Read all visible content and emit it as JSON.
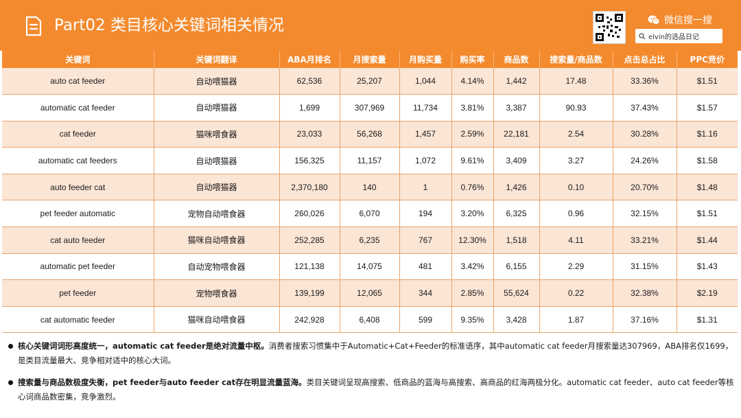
{
  "header": {
    "title": "Part02 类目核心关键词相关情况",
    "wechat_label": "微信搜一搜",
    "search_text": "elvin的选品日记"
  },
  "colors": {
    "accent": "#f48a2e",
    "row_alt": "#fbe5d5",
    "border": "#e8a46c"
  },
  "table": {
    "columns": [
      "关键词",
      "关键词翻译",
      "ABA月排名",
      "月搜索量",
      "月购买量",
      "购买率",
      "商品数",
      "搜索量/商品数",
      "点击总占比",
      "PPC竞价"
    ],
    "rows": [
      [
        "auto cat feeder",
        "自动喂猫器",
        "62,536",
        "25,207",
        "1,044",
        "4.14%",
        "1,442",
        "17.48",
        "33.36%",
        "$1.51"
      ],
      [
        "automatic cat feeder",
        "自动喂猫器",
        "1,699",
        "307,969",
        "11,734",
        "3.81%",
        "3,387",
        "90.93",
        "37.43%",
        "$1.57"
      ],
      [
        "cat feeder",
        "猫咪喂食器",
        "23,033",
        "56,268",
        "1,457",
        "2.59%",
        "22,181",
        "2.54",
        "30.28%",
        "$1.16"
      ],
      [
        "automatic cat feeders",
        "自动喂猫器",
        "156,325",
        "11,157",
        "1,072",
        "9.61%",
        "3,409",
        "3.27",
        "24.26%",
        "$1.58"
      ],
      [
        "auto feeder cat",
        "自动喂猫器",
        "2,370,180",
        "140",
        "1",
        "0.76%",
        "1,426",
        "0.10",
        "20.70%",
        "$1.48"
      ],
      [
        "pet feeder automatic",
        "宠物自动喂食器",
        "260,026",
        "6,070",
        "194",
        "3.20%",
        "6,325",
        "0.96",
        "32.15%",
        "$1.51"
      ],
      [
        "cat auto feeder",
        "猫咪自动喂食器",
        "252,285",
        "6,235",
        "767",
        "12.30%",
        "1,518",
        "4.11",
        "33.21%",
        "$1.44"
      ],
      [
        "automatic pet feeder",
        "自动宠物喂食器",
        "121,138",
        "14,075",
        "481",
        "3.42%",
        "6,155",
        "2.29",
        "31.15%",
        "$1.43"
      ],
      [
        "pet feeder",
        "宠物喂食器",
        "139,199",
        "12,065",
        "344",
        "2.85%",
        "55,624",
        "0.22",
        "32.38%",
        "$2.19"
      ],
      [
        "cat automatic feeder",
        "猫咪自动喂食器",
        "242,928",
        "6,408",
        "599",
        "9.35%",
        "3,428",
        "1.87",
        "37.16%",
        "$1.31"
      ]
    ]
  },
  "notes": [
    {
      "bold": "核心关键词词形高度统一，automatic cat feeder是绝对流量中枢。",
      "text": "消费者搜索习惯集中于Automatic+Cat+Feeder的标准语序，其中automatic cat feeder月搜索量达307969，ABA排名仅1699，是类目流量最大、竞争相对适中的核心大词。"
    },
    {
      "bold": "搜索量与商品数极度失衡，pet feeder与auto feeder cat存在明显流量蓝海。",
      "text": "类目关键词呈现高搜索、低商品的蓝海与高搜索、高商品的红海两极分化。automatic cat feeder、auto cat feeder等核心词商品数密集，竞争激烈。"
    }
  ]
}
